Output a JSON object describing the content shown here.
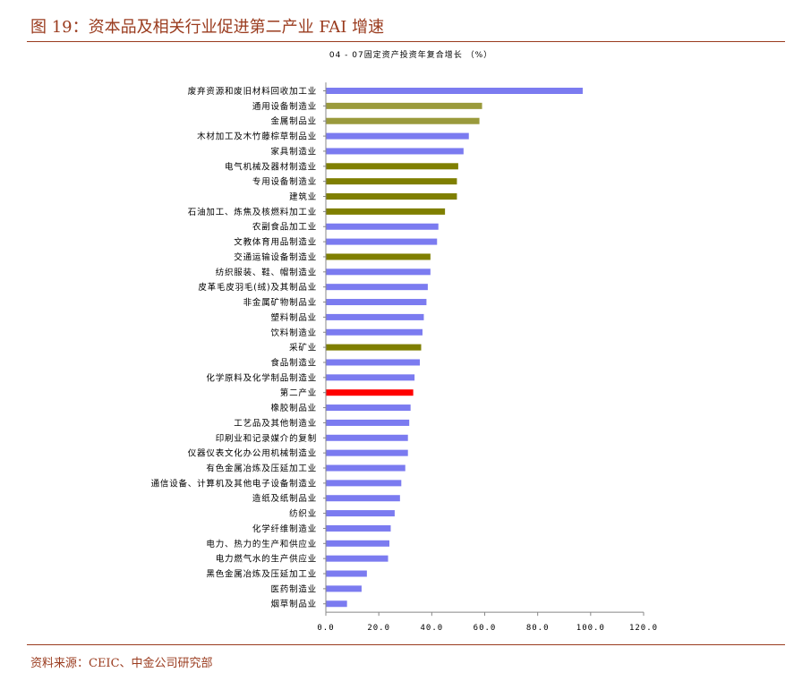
{
  "figure": {
    "title": "图 19：资本品及相关行业促进第二产业 FAI 增速",
    "source": "资料来源：CEIC、中金公司研究部"
  },
  "chart_data": {
    "type": "bar",
    "orientation": "horizontal",
    "title": "04 - 07固定资产投资年复合增长 （%）",
    "xlabel": "",
    "ylabel": "",
    "xlim": [
      0,
      120
    ],
    "xticks": [
      0,
      20,
      40,
      60,
      80,
      100,
      120
    ],
    "xtick_labels": [
      "0.0",
      "20.0",
      "40.0",
      "60.0",
      "80.0",
      "100.0",
      "120.0"
    ],
    "grid": false,
    "legend": "none",
    "colors": {
      "default": "#7b7bf0",
      "highlight_olive_light": "#9a9a3c",
      "highlight_olive": "#7f7f00",
      "highlight_red": "#ff0000",
      "axis": "#888888"
    },
    "categories": [
      "废弃资源和废旧材料回收加工业",
      "通用设备制造业",
      "金属制品业",
      "木材加工及木竹藤棕草制品业",
      "家具制造业",
      "电气机械及器材制造业",
      "专用设备制造业",
      "建筑业",
      "石油加工、炼焦及核燃料加工业",
      "农副食品加工业",
      "文教体育用品制造业",
      "交通运输设备制造业",
      "纺织服装、鞋、帽制造业",
      "皮革毛皮羽毛(绒)及其制品业",
      "非金属矿物制品业",
      "塑料制品业",
      "饮料制造业",
      "采矿业",
      "食品制造业",
      "化学原料及化学制品制造业",
      "第二产业",
      "橡胶制品业",
      "工艺品及其他制造业",
      "印刷业和记录媒介的复制",
      "仪器仪表文化办公用机械制造业",
      "有色金属冶炼及压延加工业",
      "通信设备、计算机及其他电子设备制造业",
      "造纸及纸制品业",
      "纺织业",
      "化学纤维制造业",
      "电力、热力的生产和供应业",
      "电力燃气水的生产供应业",
      "黑色金属冶炼及压延加工业",
      "医药制造业",
      "烟草制品业"
    ],
    "values": [
      97,
      59,
      58,
      54,
      52,
      50,
      49.5,
      49.5,
      45,
      42.5,
      42,
      39.5,
      39.5,
      38.5,
      38,
      37,
      36.5,
      36,
      35.5,
      33.5,
      33,
      32,
      31.5,
      31,
      31,
      30,
      28.5,
      28,
      26,
      24.5,
      24,
      23.5,
      15.5,
      13.5,
      8
    ],
    "bar_color_keys": [
      "default",
      "highlight_olive_light",
      "highlight_olive_light",
      "default",
      "default",
      "highlight_olive",
      "highlight_olive",
      "highlight_olive",
      "highlight_olive",
      "default",
      "default",
      "highlight_olive",
      "default",
      "default",
      "default",
      "default",
      "default",
      "highlight_olive",
      "default",
      "default",
      "highlight_red",
      "default",
      "default",
      "default",
      "default",
      "default",
      "default",
      "default",
      "default",
      "default",
      "default",
      "default",
      "default",
      "default",
      "default"
    ]
  }
}
